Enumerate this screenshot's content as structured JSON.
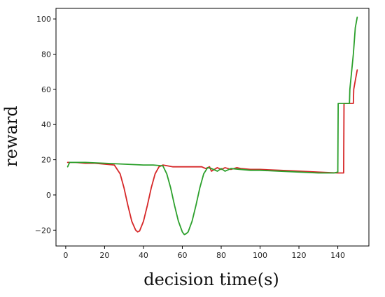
{
  "chart_data": {
    "type": "line",
    "title": "",
    "xlabel": "decision time(s)",
    "ylabel": "reward",
    "xlim": [
      -5,
      156
    ],
    "ylim": [
      -29,
      106
    ],
    "xticks": [
      0,
      20,
      40,
      60,
      80,
      100,
      120,
      140
    ],
    "yticks": [
      -20,
      0,
      20,
      40,
      60,
      80,
      100
    ],
    "grid": false,
    "series": [
      {
        "color": "#d62728",
        "x": [
          1,
          5,
          10,
          15,
          20,
          25,
          28,
          30,
          32,
          34,
          36,
          37,
          38,
          40,
          42,
          44,
          46,
          48,
          50,
          55,
          60,
          65,
          70,
          72,
          74,
          75,
          78,
          80,
          82,
          85,
          88,
          90,
          95,
          100,
          110,
          120,
          130,
          140,
          143,
          143.2,
          147,
          148,
          148.2,
          149,
          150
        ],
        "y": [
          18.5,
          18.5,
          18,
          18,
          17.5,
          17,
          12,
          4,
          -6,
          -15,
          -20,
          -21,
          -20.5,
          -15,
          -6,
          4,
          12,
          16,
          17,
          16,
          16,
          16,
          16,
          15,
          16,
          13.5,
          15.5,
          14.5,
          15.5,
          14.5,
          15.5,
          15,
          14.5,
          14.5,
          14,
          13.5,
          13,
          12.5,
          12.5,
          52,
          52,
          52,
          60,
          65,
          71
        ]
      },
      {
        "color": "#2ca02c",
        "x": [
          1,
          2,
          5,
          10,
          20,
          30,
          40,
          45,
          50,
          52,
          54,
          56,
          58,
          60,
          61,
          62,
          63,
          65,
          67,
          69,
          71,
          73,
          75,
          78,
          80,
          82,
          85,
          90,
          95,
          100,
          110,
          120,
          130,
          138,
          140,
          140.2,
          143,
          145,
          146,
          146.2,
          148,
          149,
          150
        ],
        "y": [
          16,
          18.5,
          18.5,
          18.5,
          18,
          17.5,
          17,
          17,
          16.5,
          12,
          4,
          -6,
          -15,
          -21,
          -22.5,
          -22,
          -21,
          -15,
          -6,
          4,
          12,
          15.5,
          15,
          13.5,
          15,
          13.5,
          15,
          14.5,
          14,
          14,
          13.5,
          13,
          12.5,
          12.5,
          13,
          52,
          52,
          52,
          52,
          60,
          80,
          95,
          101
        ]
      }
    ]
  }
}
